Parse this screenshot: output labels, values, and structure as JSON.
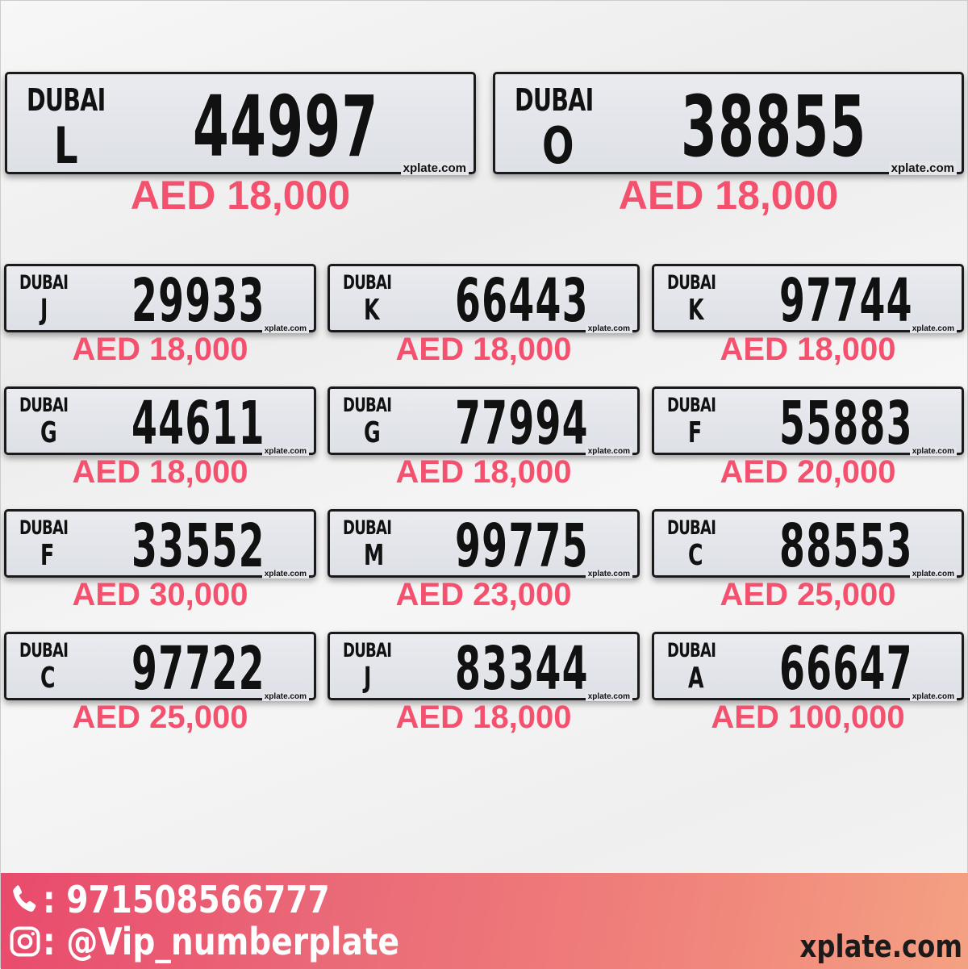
{
  "featured": [
    {
      "emirate": "DUBAI",
      "code": "L",
      "number": "44997",
      "watermark": "xplate.com",
      "price": "AED 18,000"
    },
    {
      "emirate": "DUBAI",
      "code": "O",
      "number": "38855",
      "watermark": "xplate.com",
      "price": "AED 18,000"
    }
  ],
  "plates": [
    {
      "emirate": "DUBAI",
      "code": "J",
      "number": "29933",
      "watermark": "xplate.com",
      "price": "AED 18,000"
    },
    {
      "emirate": "DUBAI",
      "code": "K",
      "number": "66443",
      "watermark": "xplate.com",
      "price": "AED 18,000"
    },
    {
      "emirate": "DUBAI",
      "code": "K",
      "number": "97744",
      "watermark": "xplate.com",
      "price": "AED 18,000"
    },
    {
      "emirate": "DUBAI",
      "code": "G",
      "number": "44611",
      "watermark": "xplate.com",
      "price": "AED 18,000"
    },
    {
      "emirate": "DUBAI",
      "code": "G",
      "number": "77994",
      "watermark": "xplate.com",
      "price": "AED 18,000"
    },
    {
      "emirate": "DUBAI",
      "code": "F",
      "number": "55883",
      "watermark": "xplate.com",
      "price": "AED 20,000"
    },
    {
      "emirate": "DUBAI",
      "code": "F",
      "number": "33552",
      "watermark": "xplate.com",
      "price": "AED 30,000"
    },
    {
      "emirate": "DUBAI",
      "code": "M",
      "number": "99775",
      "watermark": "xplate.com",
      "price": "AED 23,000"
    },
    {
      "emirate": "DUBAI",
      "code": "C",
      "number": "88553",
      "watermark": "xplate.com",
      "price": "AED 25,000"
    },
    {
      "emirate": "DUBAI",
      "code": "C",
      "number": "97722",
      "watermark": "xplate.com",
      "price": "AED 25,000"
    },
    {
      "emirate": "DUBAI",
      "code": "J",
      "number": "83344",
      "watermark": "xplate.com",
      "price": "AED 18,000"
    },
    {
      "emirate": "DUBAI",
      "code": "A",
      "number": "66647",
      "watermark": "xplate.com",
      "price": "AED 100,000"
    }
  ],
  "footer": {
    "phone": ": 971508566777",
    "instagram": ": @Vip_numberplate",
    "site": "xplate.com",
    "phone_icon": "phone-icon",
    "instagram_icon": "instagram-icon"
  },
  "colors": {
    "price": "#f4516f",
    "footer_start": "#e94a6c",
    "footer_end": "#f4a183"
  }
}
